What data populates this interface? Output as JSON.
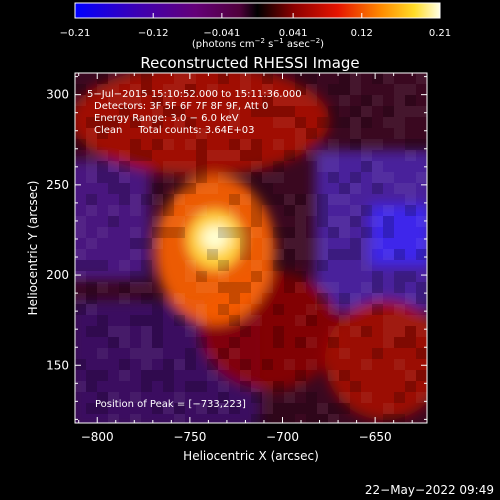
{
  "chart_data": {
    "type": "heatmap",
    "title": "Reconstructed RHESSI Image",
    "xlabel": "Heliocentric X (arcsec)",
    "ylabel": "Heliocentric Y (arcsec)",
    "xlim": [
      -812,
      -622
    ],
    "ylim": [
      118,
      312
    ],
    "x_ticks": [
      -800,
      -750,
      -700,
      -650
    ],
    "x_tick_labels": [
      "−800",
      "−750",
      "−700",
      "−650"
    ],
    "y_ticks": [
      150,
      200,
      250,
      300
    ],
    "y_tick_labels": [
      "150",
      "200",
      "250",
      "300"
    ],
    "colorbar": {
      "range": [
        -0.21,
        0.21
      ],
      "ticks": [
        -0.21,
        -0.12,
        -0.041,
        0.041,
        0.12,
        0.21
      ],
      "tick_labels": [
        "−0.21",
        "−0.12",
        "−0.041",
        "0.041",
        "0.12",
        "0.21"
      ],
      "unit_main": "(photons cm",
      "unit_sup1": "−2",
      "unit_mid": " s",
      "unit_sup2": "−1",
      "unit_mid2": " asec",
      "unit_sup3": "−2",
      "unit_end": ")"
    },
    "annotations": {
      "line1": "5−Jul−2015 15:10:52.000 to 15:11:36.000",
      "line2": "Detectors: 3F 5F 6F 7F 8F 9F, Att 0",
      "line3": "Energy Range: 3.0 − 6.0 keV",
      "line4": "Clean     Total counts: 3.64E+03"
    },
    "peak": {
      "label": "Position of Peak = [−733,223]",
      "x": -733,
      "y": 223
    },
    "grid": false
  },
  "timestamp": "22−May−2022 09:49"
}
